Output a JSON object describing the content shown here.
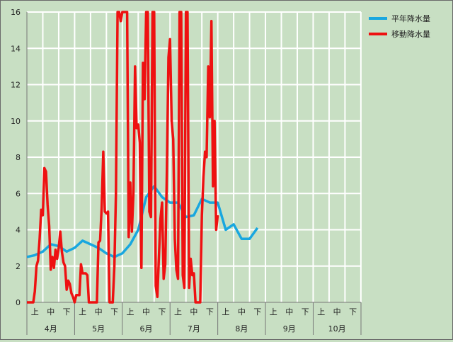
{
  "chart_data": {
    "type": "line",
    "title": "",
    "xlabel": "",
    "ylabel": "",
    "ylim": [
      0,
      16
    ],
    "yticks": [
      0,
      2,
      4,
      6,
      8,
      10,
      12,
      14,
      16
    ],
    "grid": true,
    "legend_position": "top-right",
    "months": [
      "4月",
      "5月",
      "6月",
      "7月",
      "8月",
      "9月",
      "10月"
    ],
    "decade_labels": [
      "上",
      "中",
      "下"
    ],
    "x_range": [
      0,
      21
    ],
    "series": [
      {
        "name": "平年降水量",
        "color": "#19a7df",
        "points": [
          [
            0,
            2.5
          ],
          [
            0.5,
            2.6
          ],
          [
            1,
            2.8
          ],
          [
            1.5,
            3.2
          ],
          [
            2,
            3.1
          ],
          [
            2.5,
            2.8
          ],
          [
            3,
            3.0
          ],
          [
            3.5,
            3.4
          ],
          [
            4,
            3.2
          ],
          [
            4.5,
            3.0
          ],
          [
            5,
            2.7
          ],
          [
            5.5,
            2.5
          ],
          [
            6,
            2.7
          ],
          [
            6.5,
            3.2
          ],
          [
            7,
            4.0
          ],
          [
            7.5,
            5.8
          ],
          [
            8,
            6.4
          ],
          [
            8.5,
            5.8
          ],
          [
            9,
            5.5
          ],
          [
            9.5,
            5.5
          ],
          [
            10,
            4.7
          ],
          [
            10.5,
            4.8
          ],
          [
            11,
            5.7
          ],
          [
            11.5,
            5.5
          ],
          [
            12,
            5.5
          ],
          [
            12.5,
            4.0
          ],
          [
            13,
            4.3
          ],
          [
            13.5,
            3.5
          ],
          [
            14,
            3.5
          ],
          [
            14.5,
            4.1
          ]
        ]
      },
      {
        "name": "移動降水量",
        "color": "#ee1111",
        "points": [
          [
            0,
            0
          ],
          [
            0.4,
            0
          ],
          [
            0.5,
            0.6
          ],
          [
            0.6,
            2.0
          ],
          [
            0.7,
            2.3
          ],
          [
            0.8,
            3.5
          ],
          [
            0.9,
            5.1
          ],
          [
            1.0,
            4.8
          ],
          [
            1.1,
            7.4
          ],
          [
            1.2,
            7.2
          ],
          [
            1.3,
            5.4
          ],
          [
            1.4,
            4.2
          ],
          [
            1.5,
            1.8
          ],
          [
            1.6,
            2.5
          ],
          [
            1.7,
            1.9
          ],
          [
            1.8,
            2.9
          ],
          [
            1.9,
            2.4
          ],
          [
            2.0,
            3.0
          ],
          [
            2.1,
            3.9
          ],
          [
            2.2,
            2.8
          ],
          [
            2.3,
            2.2
          ],
          [
            2.4,
            2.0
          ],
          [
            2.5,
            0.7
          ],
          [
            2.6,
            1.2
          ],
          [
            2.7,
            1.0
          ],
          [
            2.8,
            0.5
          ],
          [
            2.9,
            0.3
          ],
          [
            3.0,
            0
          ],
          [
            3.1,
            0.4
          ],
          [
            3.3,
            0.4
          ],
          [
            3.4,
            2.1
          ],
          [
            3.5,
            1.6
          ],
          [
            3.7,
            1.6
          ],
          [
            3.8,
            1.5
          ],
          [
            3.9,
            0
          ],
          [
            4.2,
            0
          ],
          [
            4.4,
            0
          ],
          [
            4.5,
            3.3
          ],
          [
            4.6,
            3.4
          ],
          [
            4.7,
            5.2
          ],
          [
            4.8,
            8.3
          ],
          [
            4.9,
            5.0
          ],
          [
            5.0,
            4.9
          ],
          [
            5.1,
            5.0
          ],
          [
            5.2,
            0
          ],
          [
            5.4,
            0
          ],
          [
            5.5,
            2.0
          ],
          [
            5.6,
            6.0
          ],
          [
            5.7,
            16
          ],
          [
            5.8,
            16
          ],
          [
            5.9,
            15.5
          ],
          [
            6.0,
            16
          ],
          [
            6.2,
            16
          ],
          [
            6.3,
            16
          ],
          [
            6.4,
            3.6
          ],
          [
            6.5,
            6.6
          ],
          [
            6.6,
            3.9
          ],
          [
            6.7,
            6.0
          ],
          [
            6.8,
            13.0
          ],
          [
            6.9,
            9.6
          ],
          [
            7.0,
            9.8
          ],
          [
            7.1,
            8.8
          ],
          [
            7.2,
            1.9
          ],
          [
            7.3,
            13.2
          ],
          [
            7.4,
            11.2
          ],
          [
            7.5,
            16
          ],
          [
            7.6,
            16
          ],
          [
            7.7,
            5.0
          ],
          [
            7.8,
            4.7
          ],
          [
            7.9,
            16
          ],
          [
            8.0,
            16
          ],
          [
            8.1,
            0.9
          ],
          [
            8.2,
            0.3
          ],
          [
            8.3,
            2.5
          ],
          [
            8.4,
            4.6
          ],
          [
            8.5,
            5.5
          ],
          [
            8.6,
            1.3
          ],
          [
            8.7,
            2.1
          ],
          [
            8.8,
            7.1
          ],
          [
            8.9,
            13.5
          ],
          [
            9.0,
            14.5
          ],
          [
            9.1,
            10.0
          ],
          [
            9.2,
            9.0
          ],
          [
            9.3,
            3.5
          ],
          [
            9.4,
            1.8
          ],
          [
            9.5,
            1.3
          ],
          [
            9.6,
            16
          ],
          [
            9.7,
            16
          ],
          [
            9.8,
            1.5
          ],
          [
            9.9,
            0.8
          ],
          [
            10.0,
            16
          ],
          [
            10.1,
            16
          ],
          [
            10.2,
            0.8
          ],
          [
            10.3,
            2.4
          ],
          [
            10.4,
            1.5
          ],
          [
            10.5,
            1.6
          ],
          [
            10.6,
            0
          ],
          [
            10.8,
            0
          ],
          [
            10.9,
            0
          ],
          [
            11.0,
            4.8
          ],
          [
            11.1,
            6.9
          ],
          [
            11.2,
            8.3
          ],
          [
            11.3,
            8.0
          ],
          [
            11.4,
            13.0
          ],
          [
            11.5,
            10.2
          ],
          [
            11.6,
            15.5
          ],
          [
            11.7,
            6.4
          ],
          [
            11.8,
            10.0
          ],
          [
            11.9,
            4.0
          ],
          [
            12.0,
            4.8
          ]
        ]
      }
    ]
  }
}
